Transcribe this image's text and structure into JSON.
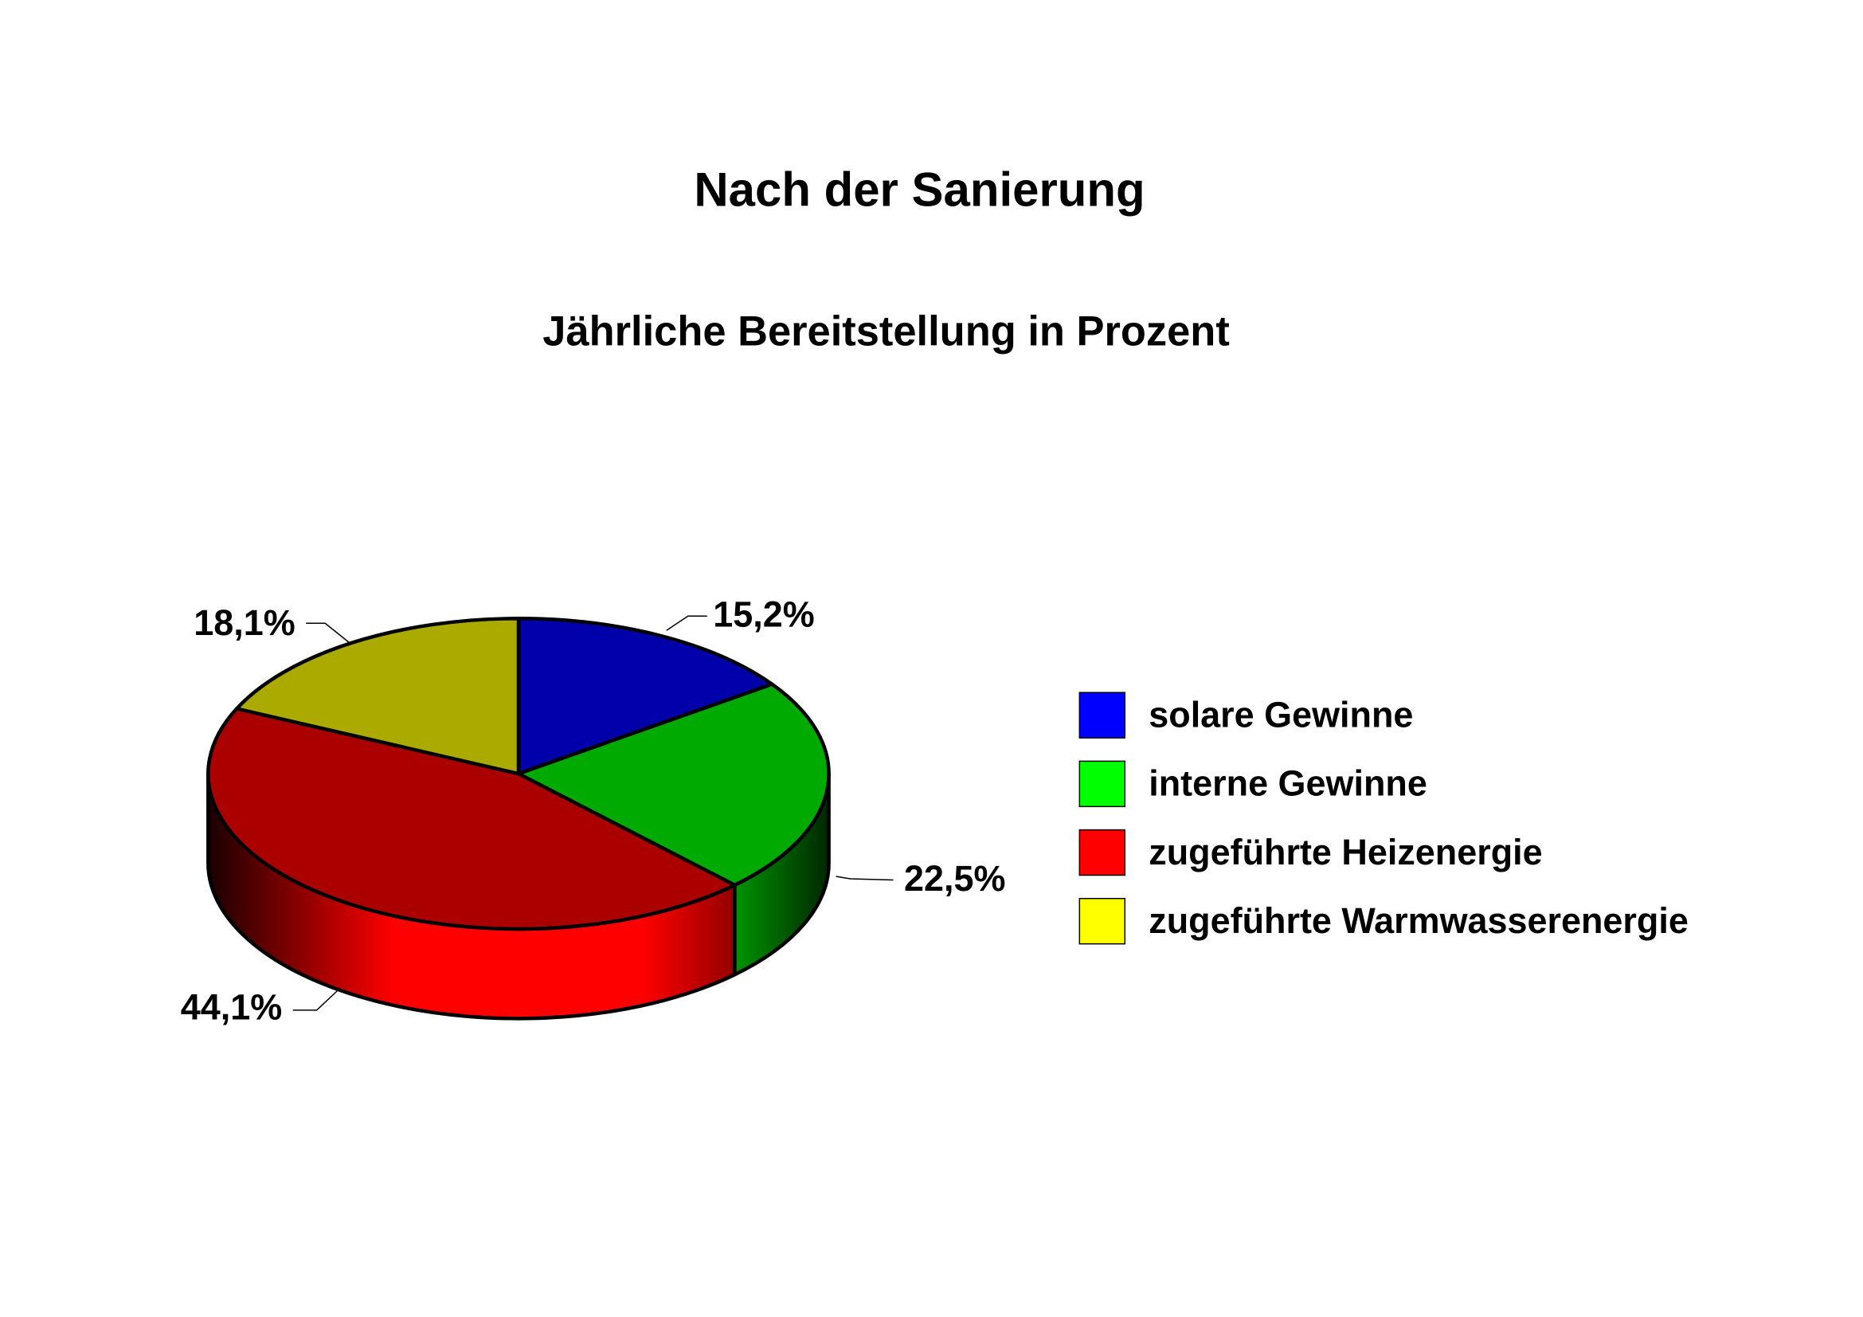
{
  "chart_data": {
    "type": "pie",
    "title": "Nach der Sanierung",
    "subtitle": "Jährliche Bereitstellung in Prozent",
    "categories": [
      "solare Gewinne",
      "interne Gewinne",
      "zugeführte Heizenergie",
      "zugeführte Warmwasserenergie"
    ],
    "values": [
      15.2,
      22.5,
      44.1,
      18.1
    ],
    "value_labels": [
      "15,2%",
      "22,5%",
      "44,1%",
      "18,1%"
    ],
    "colors": [
      "#0000ff",
      "#00ff00",
      "#ff0000",
      "#ffff00"
    ]
  }
}
